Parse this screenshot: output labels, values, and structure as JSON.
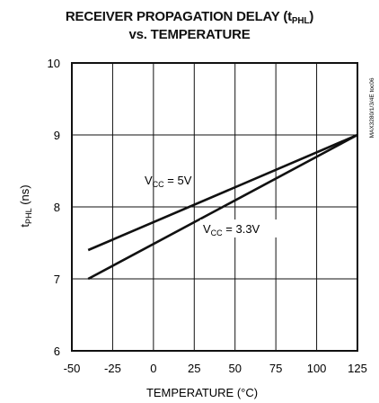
{
  "chart_data": {
    "type": "line",
    "title_line1_main": "RECEIVER PROPAGATION DELAY (t",
    "title_line1_sub": "PHL",
    "title_line1_end": ")",
    "title_line2": "vs. TEMPERATURE",
    "xlabel": "TEMPERATURE (°C)",
    "ylabel_main": "t",
    "ylabel_sub": "PHL",
    "ylabel_end": " (ns)",
    "side_code": "MAX3280/1/3/4E toc06",
    "xlim": [
      -50,
      125
    ],
    "ylim": [
      6,
      10
    ],
    "x_ticks": [
      -50,
      -25,
      0,
      25,
      50,
      75,
      100,
      125
    ],
    "y_ticks": [
      6,
      7,
      8,
      9,
      10
    ],
    "grid": true,
    "series": [
      {
        "name": "VCC = 5V",
        "label_main": "V",
        "label_sub": "CC",
        "label_end": " = 5V",
        "x": [
          -40,
          125
        ],
        "y": [
          7.4,
          9.0
        ]
      },
      {
        "name": "VCC = 3.3V",
        "label_main": "V",
        "label_sub": "CC",
        "label_end": " = 3.3V",
        "x": [
          -40,
          125
        ],
        "y": [
          7.0,
          9.0
        ]
      }
    ]
  }
}
